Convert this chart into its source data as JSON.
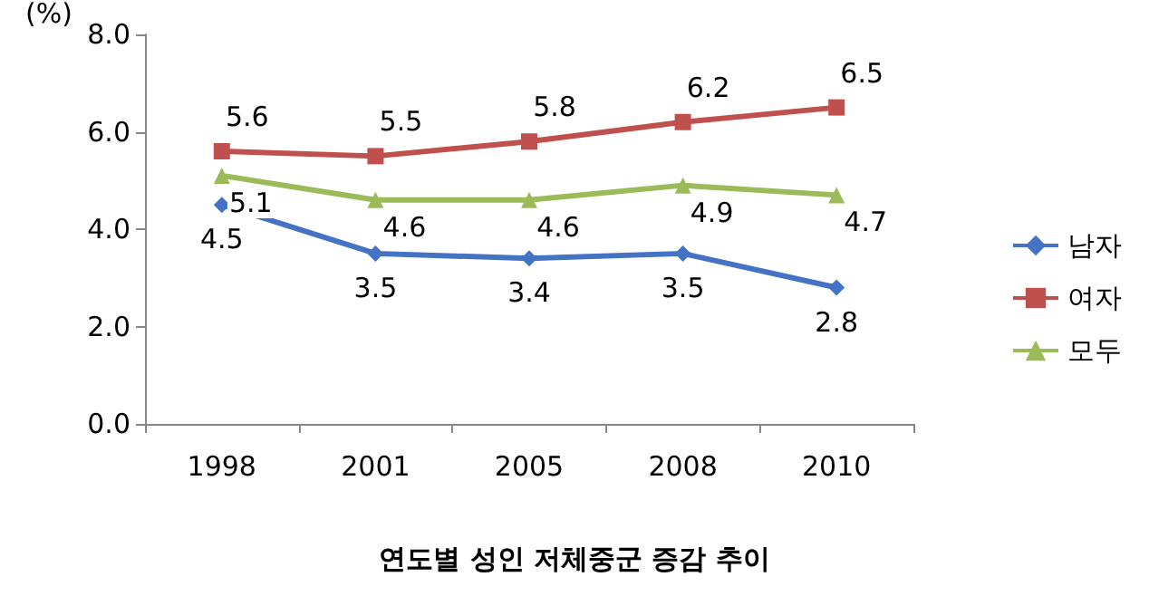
{
  "chart_data": {
    "type": "line",
    "title": "연도별 성인 저체중군 증감 추이",
    "ylabel": "(%)",
    "categories": [
      "1998",
      "2001",
      "2005",
      "2008",
      "2010"
    ],
    "series": [
      {
        "name": "남자",
        "color": "#4472c4",
        "marker": "diamond",
        "values": [
          4.5,
          3.5,
          3.4,
          3.5,
          2.8
        ]
      },
      {
        "name": "여자",
        "color": "#c0504d",
        "marker": "square",
        "values": [
          5.6,
          5.5,
          5.8,
          6.2,
          6.5
        ]
      },
      {
        "name": "모두",
        "color": "#9bbb59",
        "marker": "triangle",
        "values": [
          5.1,
          4.6,
          4.6,
          4.9,
          4.7
        ]
      }
    ],
    "ylim": [
      0,
      8
    ],
    "yticks": [
      {
        "value": 0,
        "label": "0.0"
      },
      {
        "value": 2,
        "label": "2.0"
      },
      {
        "value": 4,
        "label": "4.0"
      },
      {
        "value": 6,
        "label": "6.0"
      },
      {
        "value": 8,
        "label": "8.0"
      }
    ],
    "data_labels": true,
    "grid": false,
    "legend": "right",
    "line_style": "solid"
  }
}
